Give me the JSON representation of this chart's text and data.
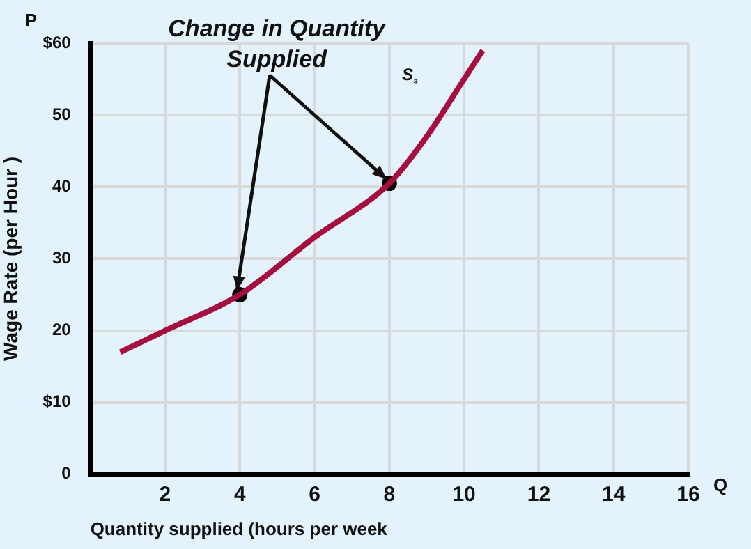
{
  "chart_data": {
    "type": "line",
    "xlabel": "Quantity supplied (hours per week",
    "ylabel": "Wage Rate (per Hour )",
    "xlim": [
      0,
      16
    ],
    "xticks": [
      2,
      4,
      6,
      8,
      10,
      12,
      14,
      16
    ],
    "ylim": [
      0,
      60
    ],
    "yticks": [
      {
        "value": 0,
        "label": "0"
      },
      {
        "value": 10,
        "label": "$10"
      },
      20,
      30,
      40,
      50,
      {
        "value": 60,
        "label": "$60"
      }
    ],
    "grid": true,
    "marker": "none",
    "line_style": "solid",
    "series": [
      {
        "name": "S₃",
        "color": "#a50e3e",
        "x": [
          0.8,
          2,
          4,
          6,
          8,
          9,
          10,
          10.5
        ],
        "values": [
          17,
          20,
          25,
          33,
          40.5,
          47,
          55,
          59
        ]
      },
      {
        "type": "scatter",
        "marker": "circle",
        "color": "#000000",
        "x": [
          4,
          8
        ],
        "values": [
          25,
          40.5
        ]
      }
    ],
    "annotations": [
      {
        "text": "Change in Quantity Supplied",
        "x": 4,
        "y": 25
      },
      "P",
      "Q"
    ]
  }
}
